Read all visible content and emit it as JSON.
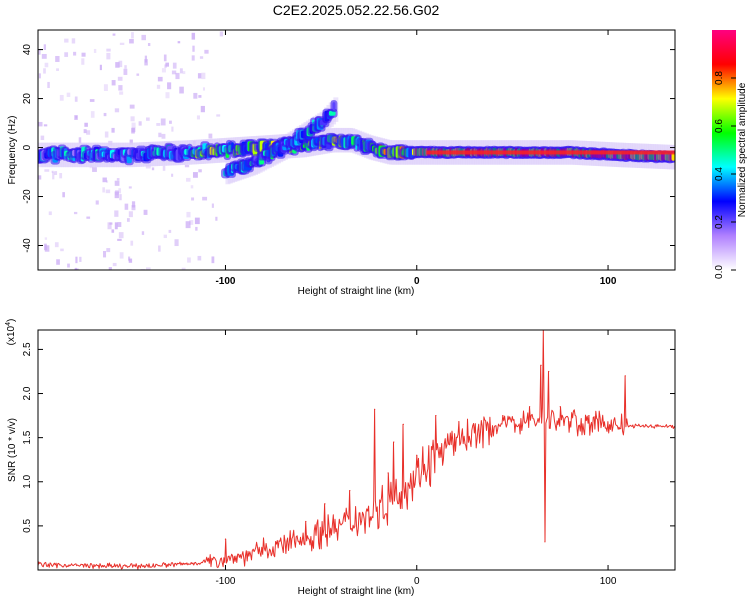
{
  "figure": {
    "title": "C2E2.2025.052.22.56.G02"
  },
  "chart_data": [
    {
      "type": "heatmap",
      "xlabel": "Height of straight line (km)",
      "ylabel": "Frequency (Hz)",
      "xlim": [
        -198,
        135
      ],
      "ylim": [
        -50,
        48
      ],
      "xticks": [
        -100,
        0,
        100
      ],
      "yticks": [
        -40,
        -20,
        0,
        20,
        40
      ],
      "colorbar": {
        "label": "Normalized spectral amplitude",
        "range": [
          0,
          1
        ],
        "ticks": [
          0.0,
          0.2,
          0.4,
          0.6,
          0.8
        ],
        "tick_labels": [
          "0.0",
          "0.2",
          "0.4",
          "0.6",
          "0.8"
        ],
        "colors": [
          "#ffffff",
          "#b080ff",
          "#0000ff",
          "#00ffff",
          "#00ff00",
          "#ffff00",
          "#ff0000",
          "#ff0080"
        ]
      },
      "ridges": [
        {
          "x": [
            -198,
            -150,
            -120,
            -100,
            -80,
            -60,
            -45,
            -35,
            -25,
            -15,
            0,
            40,
            80,
            105,
            135
          ],
          "y": [
            -3,
            -3,
            -2,
            -1,
            0,
            1,
            3,
            3,
            0,
            -2,
            -2,
            -2,
            -2,
            -3,
            -4
          ]
        },
        {
          "x": [
            -100,
            -85,
            -70,
            -60,
            -50,
            -43
          ],
          "y": [
            -10,
            -6,
            0,
            5,
            10,
            16
          ]
        }
      ]
    },
    {
      "type": "line",
      "xlabel": "Height of straight line (km)",
      "ylabel": "SNR (10 * v/v)",
      "y_multiplier": "(x10^4)",
      "xlim": [
        -198,
        135
      ],
      "ylim": [
        0,
        2.72
      ],
      "xticks": [
        -100,
        0,
        100
      ],
      "yticks": [
        0.5,
        1.0,
        1.5,
        2.0,
        2.5
      ],
      "ytick_labels": [
        "0.5",
        "1.0",
        "1.5",
        "2.0",
        "2.5"
      ],
      "color": "#e8302a",
      "trend": {
        "x": [
          -198,
          -150,
          -120,
          -100,
          -80,
          -60,
          -40,
          -20,
          -10,
          0,
          10,
          20,
          30,
          40,
          50,
          60,
          66,
          70,
          80,
          90,
          100,
          106,
          110,
          120,
          135
        ],
        "y": [
          0.06,
          0.04,
          0.07,
          0.12,
          0.22,
          0.35,
          0.5,
          0.7,
          0.85,
          1.1,
          1.3,
          1.45,
          1.55,
          1.62,
          1.68,
          1.7,
          1.7,
          1.7,
          1.68,
          1.66,
          1.65,
          1.64,
          1.63,
          1.63,
          1.63
        ]
      },
      "spikes": [
        {
          "x": -100,
          "y": 0.35
        },
        {
          "x": -58,
          "y": 0.55
        },
        {
          "x": -48,
          "y": 0.75
        },
        {
          "x": -35,
          "y": 0.9
        },
        {
          "x": -22,
          "y": 1.82
        },
        {
          "x": -15,
          "y": 1.1
        },
        {
          "x": -12,
          "y": 1.45
        },
        {
          "x": -7,
          "y": 1.65
        },
        {
          "x": 0,
          "y": 1.3
        },
        {
          "x": 10,
          "y": 1.75
        },
        {
          "x": 22,
          "y": 1.68
        },
        {
          "x": 45,
          "y": 1.75
        },
        {
          "x": 59,
          "y": 1.85
        },
        {
          "x": 65,
          "y": 2.32
        },
        {
          "x": 66,
          "y": 2.72
        },
        {
          "x": 67,
          "y": 0.32
        },
        {
          "x": 69,
          "y": 2.25
        },
        {
          "x": 75,
          "y": 1.85
        },
        {
          "x": 82,
          "y": 1.8
        },
        {
          "x": 90,
          "y": 1.75
        },
        {
          "x": 106,
          "y": 1.6
        },
        {
          "x": 109,
          "y": 2.2
        }
      ]
    }
  ]
}
